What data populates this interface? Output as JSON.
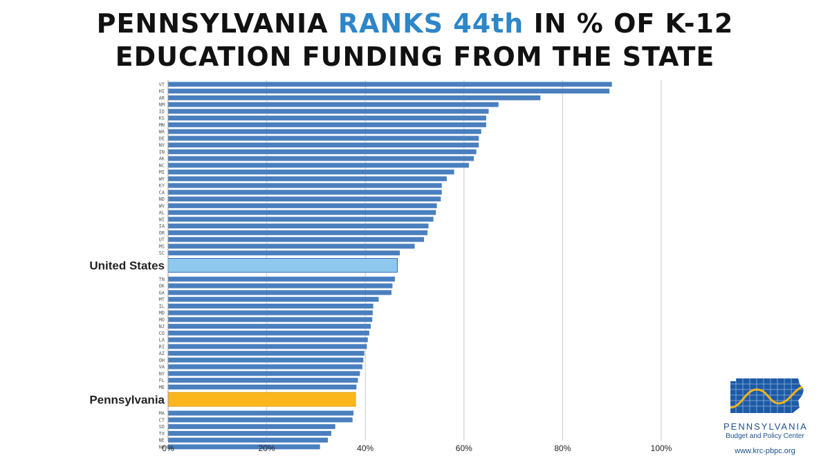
{
  "title": {
    "line1_pre": "PENNSYLVANIA ",
    "line1_highlight": "RANKS 44th",
    "line1_post": " IN % OF K-12",
    "line2": "EDUCATION FUNDING FROM THE STATE"
  },
  "colors": {
    "bar": "#4a7fbf",
    "united_states": "#8ec8ee",
    "pennsylvania": "#fbb61d",
    "title_highlight": "#2e86c8",
    "grid": "#c8c8c8"
  },
  "chart_data": {
    "type": "bar",
    "orientation": "horizontal",
    "categories": [
      "VT",
      "HI",
      "AR",
      "NM",
      "ID",
      "KS",
      "MN",
      "WA",
      "DE",
      "NV",
      "IN",
      "AK",
      "NC",
      "MI",
      "WY",
      "KY",
      "CA",
      "ND",
      "WV",
      "AL",
      "WI",
      "IA",
      "OR",
      "UT",
      "MS",
      "SC",
      "United States",
      "TN",
      "OK",
      "GA",
      "MT",
      "IL",
      "MD",
      "MO",
      "NJ",
      "CO",
      "LA",
      "RI",
      "AZ",
      "OH",
      "VA",
      "NY",
      "FL",
      "ME",
      "Pennsylvania",
      "MA",
      "CT",
      "SD",
      "TX",
      "NE",
      "NH"
    ],
    "values": [
      90,
      89.5,
      75.5,
      67,
      65,
      64.5,
      64.5,
      63.5,
      63,
      63,
      62.5,
      62,
      61,
      58,
      56.5,
      55.5,
      55.5,
      55.3,
      54.5,
      54.3,
      53.8,
      52.8,
      52.6,
      51.9,
      50,
      47,
      46.5,
      46,
      45.5,
      45.3,
      42.7,
      41.6,
      41.5,
      41.4,
      41.1,
      40.8,
      40.5,
      40.3,
      39.8,
      39.6,
      39.4,
      38.9,
      38.5,
      38.2,
      38,
      37.6,
      37.4,
      33.9,
      33.1,
      32.4,
      30.8
    ],
    "highlight": {
      "United States": "united_states",
      "Pennsylvania": "pennsylvania"
    },
    "xlim": [
      0,
      100
    ],
    "xticks": [
      "0%",
      "20%",
      "40%",
      "60%",
      "80%",
      "100%"
    ],
    "xtick_values": [
      0,
      20,
      40,
      60,
      80,
      100
    ],
    "grid": true,
    "xlabel": "",
    "ylabel": ""
  },
  "logo": {
    "name": "PENNSYLVANIA",
    "subtitle": "Budget and Policy Center",
    "url": "www.krc-pbpc.org"
  }
}
